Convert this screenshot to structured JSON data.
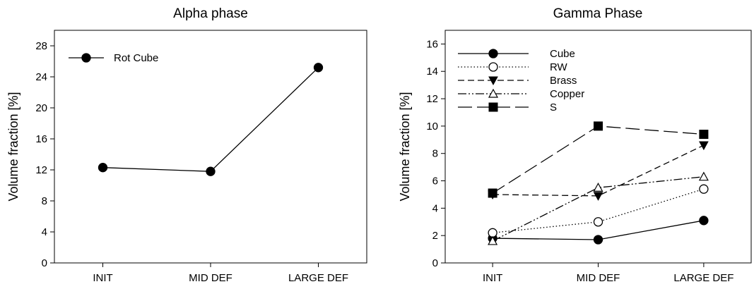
{
  "chart_data": [
    {
      "type": "line",
      "title": "Alpha phase",
      "xlabel": "",
      "ylabel": "Volume fraction [%]",
      "categories": [
        "INIT",
        "MID DEF",
        "LARGE DEF"
      ],
      "ylim": [
        0,
        30
      ],
      "yticks": [
        0,
        4,
        8,
        12,
        16,
        20,
        24,
        28
      ],
      "grid": false,
      "legend": "top-left",
      "series": [
        {
          "name": "Rot Cube",
          "marker": "filled-circle",
          "line": "solid",
          "values": [
            12.3,
            11.8,
            25.2
          ]
        }
      ]
    },
    {
      "type": "line",
      "title": "Gamma Phase",
      "xlabel": "",
      "ylabel": "Volume fraction [%]",
      "categories": [
        "INIT",
        "MID DEF",
        "LARGE DEF"
      ],
      "ylim": [
        0,
        17
      ],
      "yticks": [
        0,
        2,
        4,
        6,
        8,
        10,
        12,
        14,
        16
      ],
      "grid": false,
      "legend": "top-left",
      "series": [
        {
          "name": "Cube",
          "marker": "filled-circle",
          "line": "solid",
          "values": [
            1.8,
            1.7,
            3.1
          ]
        },
        {
          "name": "RW",
          "marker": "open-circle",
          "line": "dotted",
          "values": [
            2.2,
            3.0,
            5.4
          ]
        },
        {
          "name": "Brass",
          "marker": "filled-triangle-down",
          "line": "short-dash",
          "values": [
            5.0,
            4.9,
            8.6
          ]
        },
        {
          "name": "Copper",
          "marker": "open-triangle-up",
          "line": "dash-dot-dot",
          "values": [
            1.6,
            5.5,
            6.3
          ]
        },
        {
          "name": "S",
          "marker": "filled-square",
          "line": "long-dash",
          "values": [
            5.1,
            10.0,
            9.4
          ]
        }
      ]
    }
  ]
}
